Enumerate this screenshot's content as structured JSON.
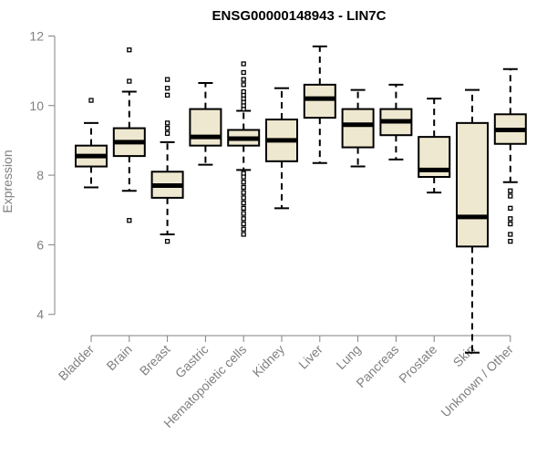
{
  "chart_data": {
    "type": "box",
    "title": "ENSG00000148943 - LIN7C",
    "xlabel": "",
    "ylabel": "Expression",
    "ylim": [
      3.6,
      12.3
    ],
    "yticks": [
      4,
      6,
      8,
      10,
      12
    ],
    "colors": {
      "box_fill": "#efe8d0",
      "stroke": "#000000",
      "axis": "#808080"
    },
    "categories": [
      "Bladder",
      "Brain",
      "Breast",
      "Gastric",
      "Hematopoietic cells",
      "Kidney",
      "Liver",
      "Lung",
      "Pancreas",
      "Prostate",
      "Skin",
      "Unknown / Other"
    ],
    "boxes": [
      {
        "label": "Bladder",
        "whisker_low": 7.65,
        "q1": 8.25,
        "median": 8.55,
        "q3": 8.85,
        "whisker_high": 9.5,
        "outliers": [
          10.15
        ]
      },
      {
        "label": "Brain",
        "whisker_low": 7.55,
        "q1": 8.55,
        "median": 8.95,
        "q3": 9.35,
        "whisker_high": 10.4,
        "outliers": [
          10.7,
          11.6,
          6.7
        ]
      },
      {
        "label": "Breast",
        "whisker_low": 6.3,
        "q1": 7.35,
        "median": 7.7,
        "q3": 8.1,
        "whisker_high": 8.95,
        "outliers": [
          9.2,
          9.35,
          9.5,
          10.3,
          10.5,
          10.75,
          6.1
        ]
      },
      {
        "label": "Gastric",
        "whisker_low": 8.3,
        "q1": 8.85,
        "median": 9.1,
        "q3": 9.9,
        "whisker_high": 10.65,
        "outliers": []
      },
      {
        "label": "Hematopoietic cells",
        "whisker_low": 8.15,
        "q1": 8.85,
        "median": 9.05,
        "q3": 9.3,
        "whisker_high": 9.85,
        "outliers": [
          9.9,
          10.0,
          10.1,
          10.2,
          10.3,
          10.4,
          10.6,
          10.75,
          10.95,
          11.2,
          8.05,
          7.95,
          7.8,
          7.65,
          7.5,
          7.35,
          7.2,
          7.05,
          6.9,
          6.75,
          6.6,
          6.45,
          6.3
        ]
      },
      {
        "label": "Kidney",
        "whisker_low": 7.05,
        "q1": 8.4,
        "median": 9.0,
        "q3": 9.6,
        "whisker_high": 10.5,
        "outliers": []
      },
      {
        "label": "Liver",
        "whisker_low": 8.35,
        "q1": 9.65,
        "median": 10.2,
        "q3": 10.6,
        "whisker_high": 11.7,
        "outliers": []
      },
      {
        "label": "Lung",
        "whisker_low": 8.25,
        "q1": 8.8,
        "median": 9.45,
        "q3": 9.9,
        "whisker_high": 10.45,
        "outliers": []
      },
      {
        "label": "Pancreas",
        "whisker_low": 8.45,
        "q1": 9.15,
        "median": 9.55,
        "q3": 9.9,
        "whisker_high": 10.6,
        "outliers": []
      },
      {
        "label": "Prostate",
        "whisker_low": 7.5,
        "q1": 7.95,
        "median": 8.15,
        "q3": 9.1,
        "whisker_high": 10.2,
        "outliers": []
      },
      {
        "label": "Skin",
        "whisker_low": 2.9,
        "q1": 5.95,
        "median": 6.8,
        "q3": 9.5,
        "whisker_high": 10.45,
        "outliers": []
      },
      {
        "label": "Unknown / Other",
        "whisker_low": 7.8,
        "q1": 8.9,
        "median": 9.3,
        "q3": 9.75,
        "whisker_high": 11.05,
        "outliers": [
          7.55,
          7.4,
          7.05,
          6.75,
          6.6,
          6.3,
          6.1
        ]
      }
    ]
  }
}
